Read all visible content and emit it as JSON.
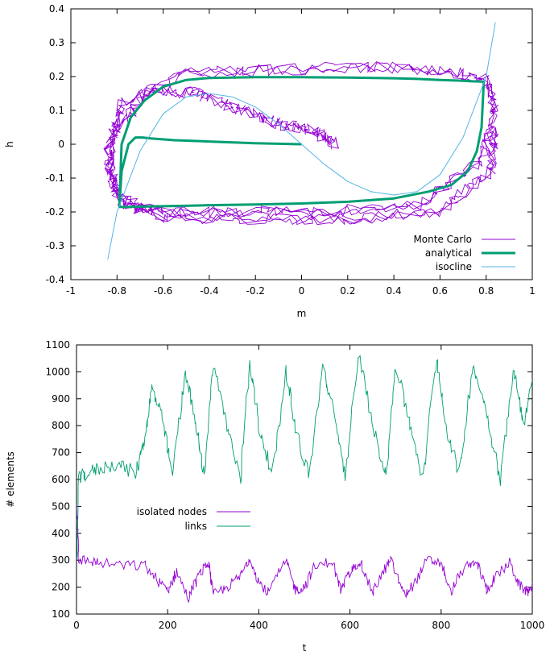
{
  "colors": {
    "monte_carlo": "#9400d3",
    "analytical": "#009e73",
    "isocline": "#56b4e9",
    "isolated_nodes": "#9400d3",
    "links": "#009e73"
  },
  "chart_data": [
    {
      "type": "line",
      "xlabel": "m",
      "ylabel": "h",
      "xlim": [
        -1,
        1
      ],
      "ylim": [
        -0.4,
        0.4
      ],
      "x_ticks": [
        "-1",
        "-0.8",
        "-0.6",
        "-0.4",
        "-0.2",
        "0",
        "0.2",
        "0.4",
        "0.6",
        "0.8",
        "1"
      ],
      "y_ticks": [
        "-0.4",
        "-0.3",
        "-0.2",
        "-0.1",
        "0",
        "0.1",
        "0.2",
        "0.3",
        "0.4"
      ],
      "legend_position": "bottom-right",
      "grid": false,
      "series": [
        {
          "name": "Monte Carlo",
          "style": "noisy trajectory spiralling out from origin onto the limit cycle",
          "x": [
            0.15,
            0.05,
            -0.1,
            -0.25,
            -0.45,
            -0.65,
            -0.8,
            -0.84,
            -0.78,
            -0.6,
            -0.3,
            0.1,
            0.5,
            0.78,
            0.84,
            0.8,
            0.6,
            0.3,
            -0.1,
            -0.5,
            -0.78,
            -0.84,
            -0.8,
            -0.6,
            -0.2,
            0.2,
            0.6,
            0.82,
            0.84
          ],
          "y": [
            0.0,
            0.04,
            0.06,
            0.1,
            0.15,
            0.16,
            0.05,
            -0.08,
            -0.18,
            -0.2,
            -0.2,
            -0.2,
            -0.18,
            -0.05,
            0.1,
            0.19,
            0.22,
            0.23,
            0.22,
            0.21,
            0.12,
            -0.02,
            -0.15,
            -0.22,
            -0.22,
            -0.22,
            -0.2,
            -0.08,
            0.05
          ]
        },
        {
          "name": "analytical",
          "style": "spiral from origin then limit cycle",
          "x": [
            0.0,
            -0.2,
            -0.4,
            -0.55,
            -0.65,
            -0.69,
            -0.72,
            -0.75,
            -0.78,
            -0.79,
            -0.78,
            -0.74,
            -0.68,
            -0.6,
            -0.5,
            -0.4,
            -0.2,
            0.0,
            0.2,
            0.4,
            0.55,
            0.65,
            0.72,
            0.76,
            0.78,
            0.79,
            0.78,
            0.74,
            0.68,
            0.6,
            0.5,
            0.4,
            0.2,
            0.0,
            -0.2,
            -0.4,
            -0.5,
            -0.6,
            -0.68,
            -0.74,
            -0.78,
            -0.79
          ],
          "y": [
            0.0,
            0.003,
            0.008,
            0.012,
            0.017,
            0.02,
            0.02,
            0.0,
            -0.08,
            -0.185,
            -0.185,
            -0.185,
            -0.184,
            -0.183,
            -0.182,
            -0.18,
            -0.178,
            -0.175,
            -0.17,
            -0.16,
            -0.14,
            -0.12,
            -0.08,
            -0.02,
            0.05,
            0.185,
            0.185,
            0.186,
            0.188,
            0.19,
            0.193,
            0.195,
            0.197,
            0.198,
            0.198,
            0.196,
            0.19,
            0.17,
            0.13,
            0.08,
            0.0,
            -0.185
          ]
        },
        {
          "name": "isocline",
          "style": "cubic h = m^3/3 - m scaled",
          "x": [
            -0.84,
            -0.8,
            -0.7,
            -0.6,
            -0.5,
            -0.4,
            -0.3,
            -0.2,
            -0.1,
            0.0,
            0.1,
            0.2,
            0.3,
            0.4,
            0.5,
            0.6,
            0.7,
            0.8,
            0.84
          ],
          "y": [
            -0.34,
            -0.2,
            -0.02,
            0.09,
            0.14,
            0.15,
            0.14,
            0.11,
            0.06,
            0.0,
            -0.06,
            -0.11,
            -0.14,
            -0.15,
            -0.14,
            -0.09,
            0.02,
            0.2,
            0.36
          ]
        }
      ]
    },
    {
      "type": "line",
      "xlabel": "t",
      "ylabel": "# elements",
      "xlim": [
        0,
        1000
      ],
      "ylim": [
        100,
        1100
      ],
      "x_ticks": [
        "0",
        "200",
        "400",
        "600",
        "800",
        "1000"
      ],
      "y_ticks": [
        "100",
        "200",
        "300",
        "400",
        "500",
        "600",
        "700",
        "800",
        "900",
        "1000",
        "1100"
      ],
      "legend_position": "center-left",
      "grid": false,
      "series": [
        {
          "name": "isolated nodes",
          "x": [
            0,
            5,
            20,
            50,
            100,
            150,
            180,
            200,
            220,
            245,
            270,
            290,
            300,
            330,
            360,
            380,
            400,
            420,
            460,
            480,
            500,
            520,
            560,
            580,
            600,
            620,
            650,
            670,
            690,
            720,
            740,
            770,
            800,
            820,
            850,
            880,
            900,
            920,
            950,
            970,
            990,
            1000
          ],
          "y": [
            520,
            300,
            300,
            290,
            280,
            280,
            220,
            190,
            260,
            160,
            250,
            290,
            170,
            200,
            240,
            310,
            220,
            180,
            300,
            190,
            200,
            270,
            300,
            190,
            250,
            300,
            180,
            250,
            300,
            170,
            210,
            300,
            290,
            180,
            270,
            290,
            190,
            240,
            290,
            210,
            180,
            210
          ]
        },
        {
          "name": "links",
          "x": [
            0,
            5,
            20,
            50,
            90,
            130,
            150,
            165,
            185,
            210,
            240,
            260,
            280,
            300,
            330,
            360,
            380,
            400,
            430,
            460,
            480,
            510,
            540,
            570,
            590,
            620,
            650,
            680,
            700,
            730,
            760,
            790,
            810,
            840,
            870,
            900,
            930,
            960,
            980,
            1000
          ],
          "y": [
            300,
            600,
            620,
            640,
            660,
            620,
            760,
            940,
            850,
            620,
            1000,
            820,
            610,
            1040,
            800,
            600,
            1040,
            800,
            620,
            1010,
            790,
            610,
            1020,
            800,
            620,
            1070,
            800,
            620,
            1030,
            820,
            600,
            1060,
            800,
            620,
            1030,
            850,
            600,
            1020,
            800,
            970
          ]
        }
      ]
    }
  ]
}
